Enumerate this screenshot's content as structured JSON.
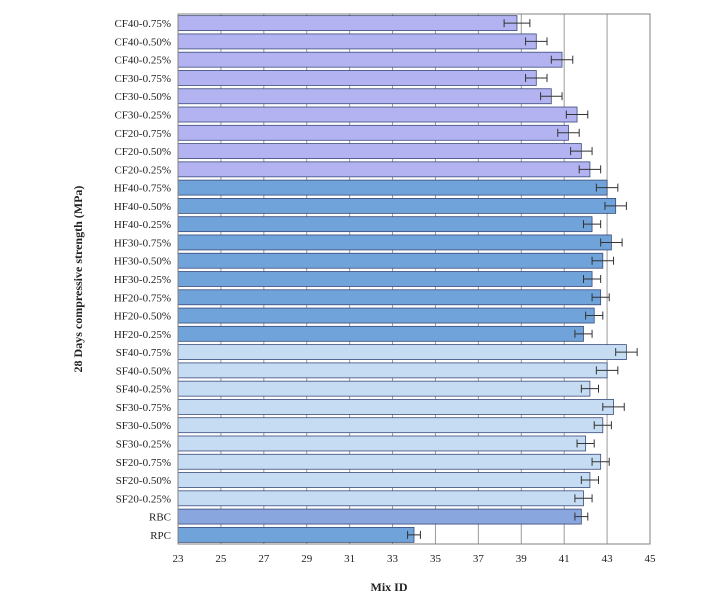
{
  "chart_data": {
    "type": "bar",
    "orientation": "horizontal",
    "xlabel": "Mix ID",
    "ylabel": "28 Days compressive strength (MPa)",
    "xlim": [
      23,
      45
    ],
    "x_ticks": [
      23,
      25,
      27,
      29,
      31,
      33,
      35,
      37,
      39,
      41,
      43,
      45
    ],
    "grid": "vertical",
    "legend": "none",
    "colors": {
      "CF": "#b3b3f2",
      "HF": "#6fa3d9",
      "SF": "#c5dcf2",
      "RBC": "#8aa6de",
      "RPC": "#6fa3d9",
      "edge": "#3a4a7a"
    },
    "categories": [
      "CF40-0.75%",
      "CF40-0.50%",
      "CF40-0.25%",
      "CF30-0.75%",
      "CF30-0.50%",
      "CF30-0.25%",
      "CF20-0.75%",
      "CF20-0.50%",
      "CF20-0.25%",
      "HF40-0.75%",
      "HF40-0.50%",
      "HF40-0.25%",
      "HF30-0.75%",
      "HF30-0.50%",
      "HF30-0.25%",
      "HF20-0.75%",
      "HF20-0.50%",
      "HF20-0.25%",
      "SF40-0.75%",
      "SF40-0.50%",
      "SF40-0.25%",
      "SF30-0.75%",
      "SF30-0.50%",
      "SF30-0.25%",
      "SF20-0.75%",
      "SF20-0.50%",
      "SF20-0.25%",
      "RBC",
      "RPC"
    ],
    "groups": [
      "CF",
      "CF",
      "CF",
      "CF",
      "CF",
      "CF",
      "CF",
      "CF",
      "CF",
      "HF",
      "HF",
      "HF",
      "HF",
      "HF",
      "HF",
      "HF",
      "HF",
      "HF",
      "SF",
      "SF",
      "SF",
      "SF",
      "SF",
      "SF",
      "SF",
      "SF",
      "SF",
      "RBC",
      "RPC"
    ],
    "values": [
      38.8,
      39.7,
      40.9,
      39.7,
      40.4,
      41.6,
      41.2,
      41.8,
      42.2,
      43.0,
      43.4,
      42.3,
      43.2,
      42.8,
      42.3,
      42.7,
      42.4,
      41.9,
      43.9,
      43.0,
      42.2,
      43.3,
      42.8,
      42.0,
      42.7,
      42.2,
      41.9,
      41.8,
      34.0
    ],
    "errors": [
      0.6,
      0.5,
      0.5,
      0.5,
      0.5,
      0.5,
      0.5,
      0.5,
      0.5,
      0.5,
      0.5,
      0.4,
      0.5,
      0.5,
      0.4,
      0.4,
      0.4,
      0.4,
      0.5,
      0.5,
      0.4,
      0.5,
      0.4,
      0.4,
      0.4,
      0.4,
      0.4,
      0.3,
      0.3
    ]
  }
}
